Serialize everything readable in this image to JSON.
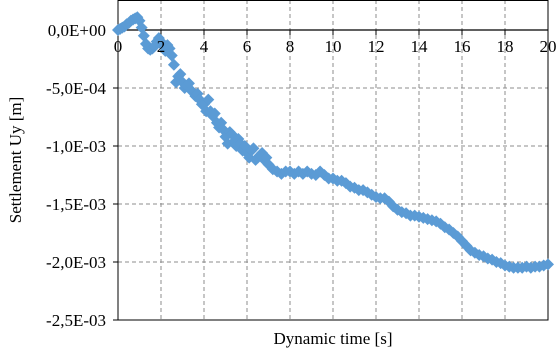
{
  "chart_data": {
    "type": "scatter",
    "xlabel": "Dynamic time [s]",
    "ylabel": "Settlement  Uy [m]",
    "xlim": [
      0,
      20
    ],
    "ylim": [
      -0.0025,
      0.0001
    ],
    "x_ticks": [
      0,
      2,
      4,
      6,
      8,
      10,
      12,
      14,
      16,
      18,
      20
    ],
    "x_tick_labels": [
      "0",
      "2",
      "4",
      "6",
      "8",
      "10",
      "12",
      "14",
      "16",
      "18",
      "20"
    ],
    "y_ticks": [
      0,
      -0.0005,
      -0.001,
      -0.0015,
      -0.002,
      -0.0025
    ],
    "y_tick_labels": [
      "0,0E+00",
      "-5,0E-04",
      "-1,0E-03",
      "-1,5E-03",
      "-2,0E-03",
      "-2,5E-03"
    ],
    "grid": true,
    "marker": "diamond",
    "series_color": "#5B9BD5",
    "series": [
      {
        "x": [
          0,
          0.1,
          0.2,
          0.3,
          0.4,
          0.5,
          0.6,
          0.7,
          0.8,
          0.9,
          1.0,
          1.1,
          1.2,
          1.3,
          1.4,
          1.5,
          1.6,
          1.7,
          1.8,
          1.9,
          2.0,
          2.1,
          2.2,
          2.3,
          2.4,
          2.5,
          2.6,
          2.7,
          2.8,
          2.9,
          3.0,
          3.1,
          3.2,
          3.3,
          3.4,
          3.5,
          3.6,
          3.7,
          3.8,
          3.9,
          4.0,
          4.1,
          4.2,
          4.3,
          4.4,
          4.5,
          4.6,
          4.7,
          4.8,
          4.9,
          5.0,
          5.1,
          5.2,
          5.3,
          5.4,
          5.5,
          5.6,
          5.7,
          5.8,
          5.9,
          6.0,
          6.1,
          6.2,
          6.3,
          6.4,
          6.5,
          6.6,
          6.7,
          6.8,
          6.9,
          7.0,
          7.2,
          7.4,
          7.6,
          7.8,
          8.0,
          8.2,
          8.4,
          8.6,
          8.8,
          9.0,
          9.2,
          9.4,
          9.6,
          9.8,
          10.0,
          10.2,
          10.4,
          10.6,
          10.8,
          11.0,
          11.2,
          11.4,
          11.6,
          11.8,
          12.0,
          12.2,
          12.4,
          12.6,
          12.8,
          13.0,
          13.2,
          13.4,
          13.6,
          13.8,
          14.0,
          14.2,
          14.4,
          14.6,
          14.8,
          15.0,
          15.2,
          15.4,
          15.6,
          15.8,
          16.0,
          16.2,
          16.4,
          16.6,
          16.8,
          17.0,
          17.2,
          17.4,
          17.6,
          17.8,
          18.0,
          18.2,
          18.4,
          18.6,
          18.8,
          19.0,
          19.2,
          19.4,
          19.6,
          19.8,
          20.0
        ],
        "y": [
          0,
          1e-05,
          2e-05,
          3e-05,
          5e-05,
          6e-05,
          8e-05,
          9e-05,
          0.0001,
          0.00011,
          8e-05,
          2e-05,
          -5e-05,
          -0.00012,
          -0.00016,
          -0.00017,
          -0.00016,
          -0.00014,
          -0.0001,
          -7e-05,
          -0.0001,
          -0.00014,
          -0.00018,
          -0.00013,
          -0.00016,
          -0.00022,
          -0.0003,
          -0.00045,
          -0.0004,
          -0.00038,
          -0.00045,
          -0.0005,
          -0.00048,
          -0.00046,
          -0.00052,
          -0.00054,
          -0.00057,
          -0.00055,
          -0.0006,
          -0.00064,
          -0.00064,
          -0.0007,
          -0.0006,
          -0.0007,
          -0.00074,
          -0.00072,
          -0.0008,
          -0.00084,
          -0.0008,
          -0.00086,
          -0.00092,
          -0.00098,
          -0.00088,
          -0.0009,
          -0.00096,
          -0.001,
          -0.00094,
          -0.00098,
          -0.00104,
          -0.001,
          -0.00106,
          -0.0011,
          -0.00104,
          -0.00102,
          -0.00112,
          -0.0011,
          -0.00108,
          -0.00106,
          -0.00112,
          -0.0011,
          -0.00116,
          -0.0012,
          -0.00122,
          -0.00124,
          -0.00122,
          -0.00122,
          -0.00124,
          -0.00122,
          -0.00124,
          -0.00122,
          -0.00124,
          -0.00125,
          -0.00122,
          -0.00125,
          -0.00128,
          -0.00128,
          -0.0013,
          -0.0013,
          -0.00132,
          -0.00135,
          -0.00136,
          -0.00138,
          -0.00138,
          -0.0014,
          -0.00142,
          -0.00144,
          -0.00145,
          -0.00145,
          -0.00148,
          -0.00152,
          -0.00155,
          -0.00157,
          -0.00158,
          -0.0016,
          -0.0016,
          -0.00161,
          -0.00162,
          -0.00163,
          -0.00164,
          -0.00165,
          -0.00167,
          -0.0017,
          -0.00172,
          -0.00175,
          -0.00178,
          -0.00182,
          -0.00186,
          -0.0019,
          -0.00192,
          -0.00194,
          -0.00195,
          -0.00197,
          -0.00198,
          -0.002,
          -0.00201,
          -0.00203,
          -0.00204,
          -0.00205,
          -0.00205,
          -0.00205,
          -0.00204,
          -0.00205,
          -0.00204,
          -0.00204,
          -0.00203,
          -0.00202
        ]
      }
    ]
  }
}
